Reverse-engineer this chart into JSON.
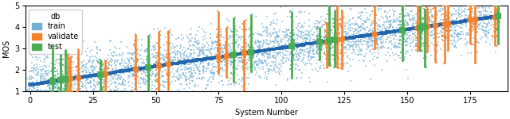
{
  "title": "",
  "xlabel": "System Number",
  "ylabel": "MOS",
  "xlim": [
    -2,
    190
  ],
  "ylim": [
    1,
    5
  ],
  "xticks": [
    0,
    25,
    50,
    75,
    100,
    125,
    150,
    175
  ],
  "yticks": [
    1,
    2,
    3,
    4,
    5
  ],
  "n_systems": 187,
  "n_train": 150,
  "n_validate": 22,
  "n_test": 15,
  "train_color": "#74afd4",
  "train_mean_color": "#2166ac",
  "validate_color": "#f5812a",
  "test_color": "#4aad52",
  "legend_title": "db",
  "figsize": [
    6.4,
    1.5
  ],
  "dpi": 100,
  "seed": 42,
  "scatter_alpha": 0.55,
  "scatter_size": 4,
  "mean_size": 30,
  "n_ratings_per_system": 20,
  "mos_std": 0.65
}
